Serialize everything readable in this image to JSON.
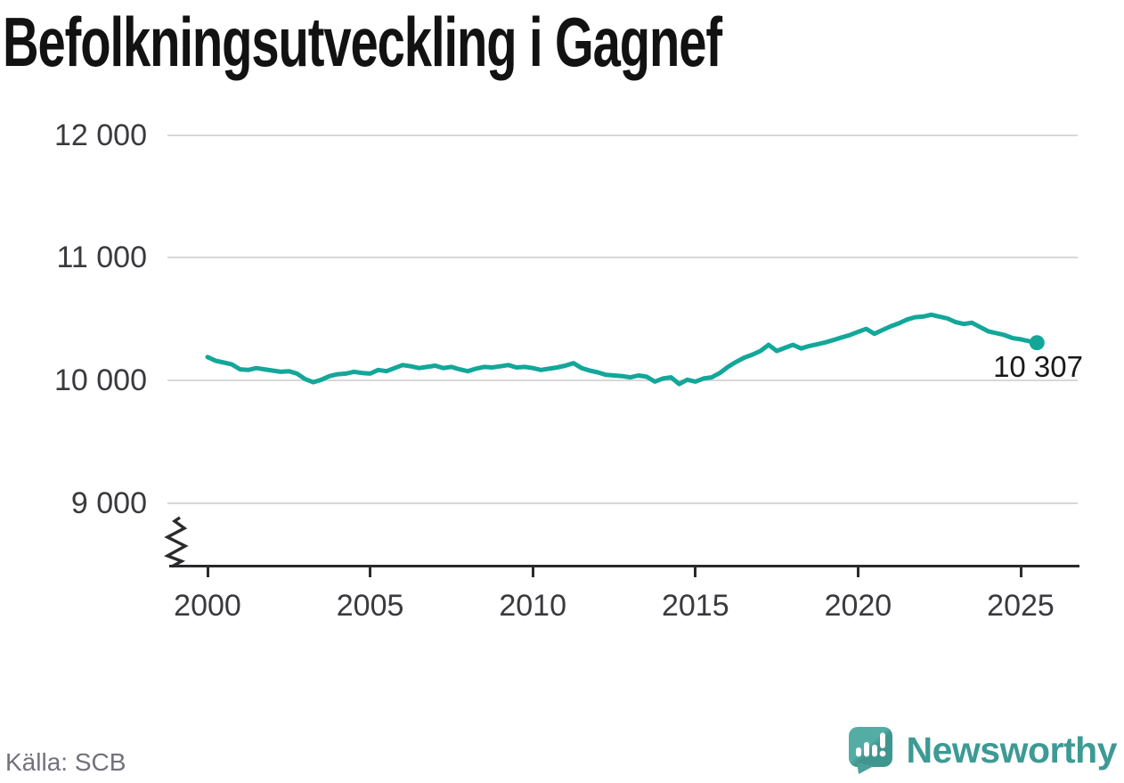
{
  "title": "Befolkningsutveckling i Gagnef",
  "source": "Källa: SCB",
  "brand": {
    "name": "Newsworthy"
  },
  "colors": {
    "line": "#13a79a",
    "grid": "#d8d8d8",
    "axis": "#2b2b2e",
    "tick_text": "#3a3a3e",
    "title_text": "#121212",
    "source_text": "#72727c",
    "brand_teal": "#3d9a94",
    "logo_teal_light": "#54ada4",
    "logo_teal_dark": "#3f968e"
  },
  "chart_data": {
    "type": "line",
    "title": "Befolkningsutveckling i Gagnef",
    "xlabel": "",
    "ylabel": "",
    "grid": "horizontal",
    "axis_break": true,
    "last_point_label": "10 307",
    "last_point_value": 10307,
    "ylim": [
      8600,
      12300
    ],
    "yticks": [
      {
        "label": "12 000",
        "value": 12000
      },
      {
        "label": "11 000",
        "value": 11000
      },
      {
        "label": "10 000",
        "value": 10000
      },
      {
        "label": "9 000",
        "value": 9000
      }
    ],
    "xticks": [
      {
        "label": "2000",
        "value": 2000
      },
      {
        "label": "2005",
        "value": 2005
      },
      {
        "label": "2010",
        "value": 2010
      },
      {
        "label": "2015",
        "value": 2015
      },
      {
        "label": "2020",
        "value": 2020
      },
      {
        "label": "2025",
        "value": 2025
      }
    ],
    "x": [
      2000,
      2000.25,
      2000.5,
      2000.75,
      2001,
      2001.25,
      2001.5,
      2001.75,
      2002,
      2002.25,
      2002.5,
      2002.75,
      2003,
      2003.25,
      2003.5,
      2003.75,
      2004,
      2004.25,
      2004.5,
      2004.75,
      2005,
      2005.25,
      2005.5,
      2005.75,
      2006,
      2006.25,
      2006.5,
      2006.75,
      2007,
      2007.25,
      2007.5,
      2007.75,
      2008,
      2008.25,
      2008.5,
      2008.75,
      2009,
      2009.25,
      2009.5,
      2009.75,
      2010,
      2010.25,
      2010.5,
      2010.75,
      2011,
      2011.25,
      2011.5,
      2011.75,
      2012,
      2012.25,
      2012.5,
      2012.75,
      2013,
      2013.25,
      2013.5,
      2013.75,
      2014,
      2014.25,
      2014.5,
      2014.75,
      2015,
      2015.25,
      2015.5,
      2015.75,
      2016,
      2016.25,
      2016.5,
      2016.75,
      2017,
      2017.25,
      2017.5,
      2017.75,
      2018,
      2018.25,
      2018.5,
      2018.75,
      2019,
      2019.25,
      2019.5,
      2019.75,
      2020,
      2020.25,
      2020.5,
      2020.75,
      2021,
      2021.25,
      2021.5,
      2021.75,
      2022,
      2022.25,
      2022.5,
      2022.75,
      2023,
      2023.25,
      2023.5,
      2023.75,
      2024,
      2024.25,
      2024.5,
      2024.75,
      2025,
      2025.25,
      2025.5
    ],
    "series": [
      {
        "name": "Befolkning",
        "values": [
          10190,
          10160,
          10145,
          10130,
          10090,
          10085,
          10100,
          10090,
          10080,
          10070,
          10075,
          10055,
          10010,
          9985,
          10005,
          10035,
          10050,
          10055,
          10070,
          10060,
          10055,
          10085,
          10075,
          10100,
          10125,
          10115,
          10100,
          10110,
          10120,
          10100,
          10110,
          10090,
          10075,
          10095,
          10110,
          10105,
          10115,
          10125,
          10105,
          10110,
          10100,
          10085,
          10095,
          10105,
          10120,
          10140,
          10100,
          10080,
          10065,
          10045,
          10040,
          10035,
          10025,
          10040,
          10030,
          9990,
          10015,
          10025,
          9970,
          10005,
          9990,
          10015,
          10025,
          10060,
          10110,
          10150,
          10185,
          10210,
          10240,
          10290,
          10240,
          10265,
          10290,
          10260,
          10280,
          10295,
          10310,
          10330,
          10350,
          10370,
          10395,
          10420,
          10380,
          10410,
          10440,
          10465,
          10495,
          10515,
          10520,
          10535,
          10520,
          10505,
          10475,
          10460,
          10470,
          10435,
          10400,
          10385,
          10370,
          10345,
          10335,
          10320,
          10307
        ]
      }
    ]
  }
}
